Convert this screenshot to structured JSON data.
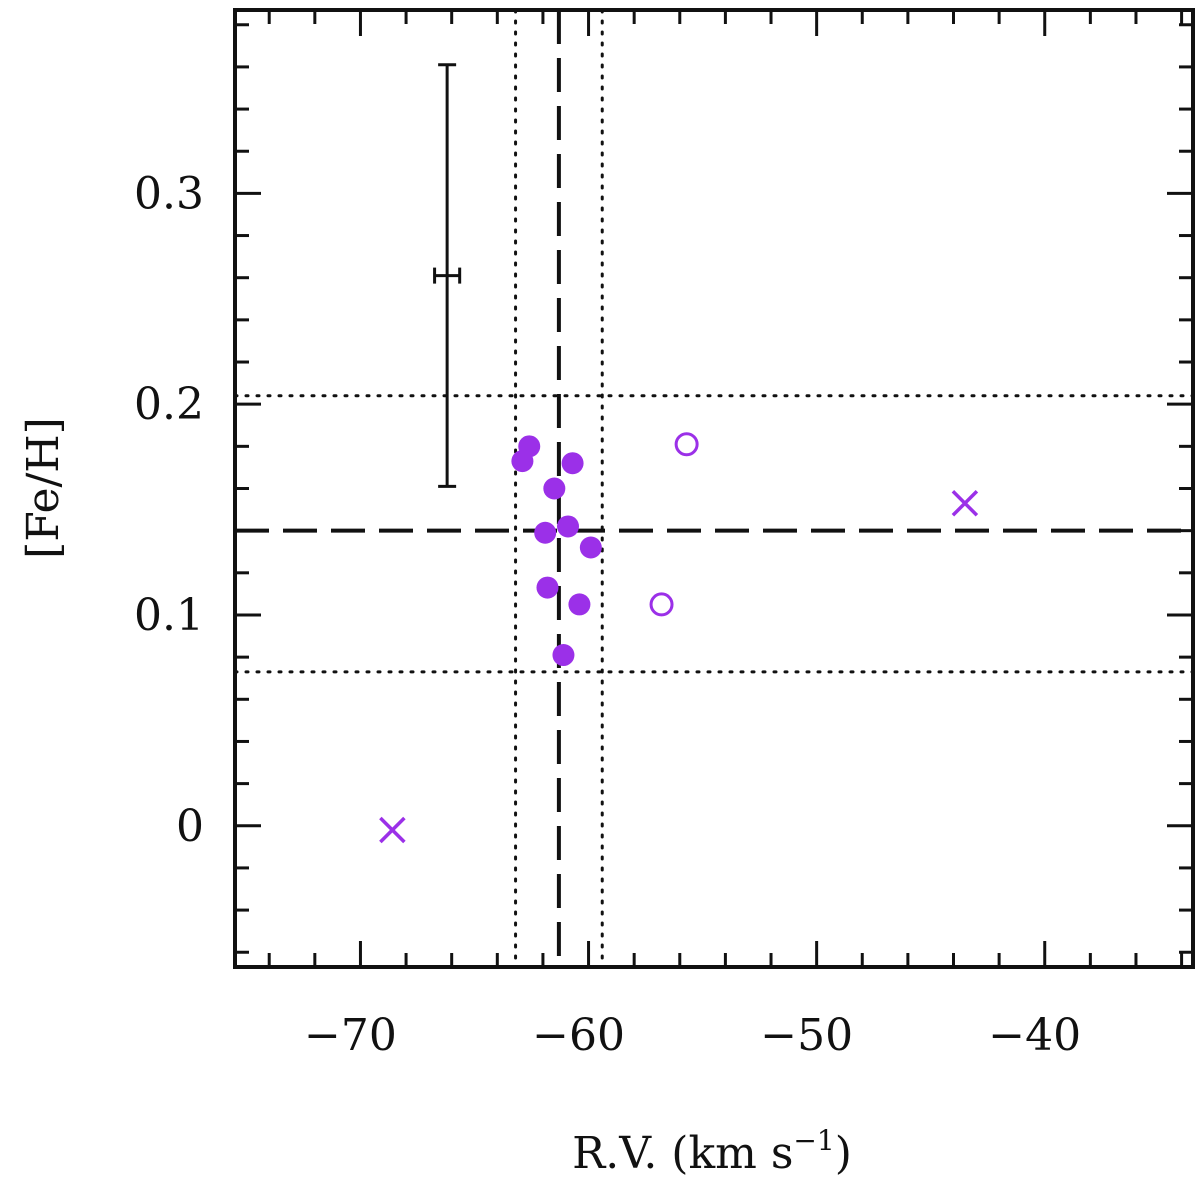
{
  "chart_data": {
    "type": "scatter",
    "xlabel": "R.V. (km s",
    "xlabel_superscript": "−1",
    "xlabel_close": ")",
    "ylabel": "[Fe/H]",
    "xlim": [
      -75.5,
      -33.5
    ],
    "ylim": [
      -0.067,
      0.387
    ],
    "x_ticks": [
      {
        "value": -70,
        "label": "−70"
      },
      {
        "value": -60,
        "label": "−60"
      },
      {
        "value": -50,
        "label": "−50"
      },
      {
        "value": -40,
        "label": "−40"
      }
    ],
    "y_ticks": [
      {
        "value": 0,
        "label": "0"
      },
      {
        "value": 0.1,
        "label": "0.1"
      },
      {
        "value": 0.2,
        "label": "0.2"
      },
      {
        "value": 0.3,
        "label": "0.3"
      }
    ],
    "x_minor_step": 2,
    "y_minor_step": 0.02,
    "marker_color": "#9b30e8",
    "line_color": "#111111",
    "series": [
      {
        "marker": "filled-circle",
        "points": [
          {
            "x": -62.6,
            "y": 0.18
          },
          {
            "x": -62.9,
            "y": 0.173
          },
          {
            "x": -60.7,
            "y": 0.172
          },
          {
            "x": -61.5,
            "y": 0.16
          },
          {
            "x": -60.9,
            "y": 0.142
          },
          {
            "x": -61.9,
            "y": 0.139
          },
          {
            "x": -59.9,
            "y": 0.132
          },
          {
            "x": -61.8,
            "y": 0.113
          },
          {
            "x": -60.4,
            "y": 0.105
          },
          {
            "x": -61.1,
            "y": 0.081
          }
        ]
      },
      {
        "marker": "open-circle",
        "points": [
          {
            "x": -55.7,
            "y": 0.181
          },
          {
            "x": -56.8,
            "y": 0.105
          }
        ]
      },
      {
        "marker": "cross",
        "points": [
          {
            "x": -43.5,
            "y": 0.153
          },
          {
            "x": -68.6,
            "y": -0.002
          }
        ]
      }
    ],
    "reference_lines": {
      "vertical_dashed": -61.3,
      "vertical_dotted": [
        -63.2,
        -59.4
      ],
      "horizontal_dashed": 0.14,
      "horizontal_dotted": [
        0.204,
        0.073
      ]
    },
    "error_bar": {
      "x": -66.2,
      "y": 0.261,
      "y_err": 0.1,
      "x_err": 0.55
    }
  }
}
